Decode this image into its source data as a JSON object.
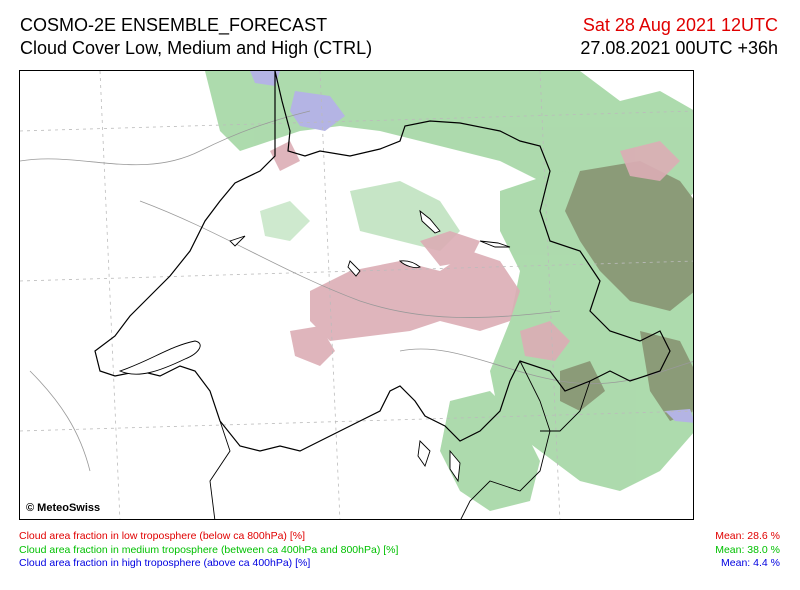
{
  "header": {
    "model_title": "COSMO-2E ENSEMBLE_FORECAST",
    "subtitle": "Cloud Cover Low, Medium and High (CTRL)",
    "valid_time": "Sat 28 Aug 2021 12UTC",
    "run_time": "27.08.2021 00UTC +36h"
  },
  "map": {
    "copyright": "© MeteoSwiss"
  },
  "legend": [
    {
      "label": "Cloud area fraction in low troposphere (below ca 800hPa) [%]",
      "mean": "Mean:   28.6 %",
      "color": "#e00000"
    },
    {
      "label": "Cloud area fraction in medium troposphere (between ca 400hPa and 800hPa) [%]",
      "mean": "Mean:   38.0 %",
      "color": "#00c000"
    },
    {
      "label": "Cloud area fraction in high troposphere (above ca 400hPa) [%]",
      "mean": "Mean:    4.4 %",
      "color": "#0000e0"
    }
  ],
  "colors": {
    "low_cloud": "#d8a8b0",
    "medium_cloud": "#a8d8a8",
    "mixed_cloud": "#8a9a7a",
    "high_cloud": "#b0b0e0"
  }
}
